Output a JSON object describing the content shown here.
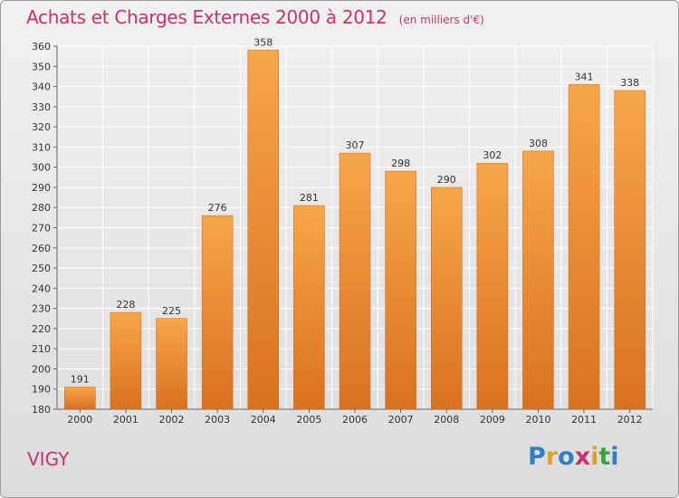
{
  "header": {
    "title": "Achats et Charges Externes 2000 à 2012",
    "subtitle": "(en milliers d'€)"
  },
  "footer": {
    "commune": "VIGY",
    "brand_letters": [
      "P",
      "r",
      "o",
      "x",
      "i",
      "t",
      "i"
    ],
    "brand_colors": [
      "#2f7fc1",
      "#e0a12a",
      "#2f7fc1",
      "#c8326f",
      "#e0a12a",
      "#3aa640",
      "#2f7fc1"
    ]
  },
  "colors": {
    "accent": "#c8326f",
    "bar_top": "#f7a64a",
    "bar_bottom": "#d9711f",
    "grid": "#ffffff"
  },
  "chart_data": {
    "type": "bar",
    "title": "Achats et Charges Externes 2000 à 2012",
    "subtitle": "(en milliers d'€)",
    "categories": [
      "2000",
      "2001",
      "2002",
      "2003",
      "2004",
      "2005",
      "2006",
      "2007",
      "2008",
      "2009",
      "2010",
      "2011",
      "2012"
    ],
    "values": [
      191,
      228,
      225,
      276,
      358,
      281,
      307,
      298,
      290,
      302,
      308,
      341,
      338
    ],
    "ylim": [
      180,
      360
    ],
    "ytick_step": 10,
    "grid": true,
    "show_data_labels": true,
    "xlabel": "",
    "ylabel": ""
  }
}
